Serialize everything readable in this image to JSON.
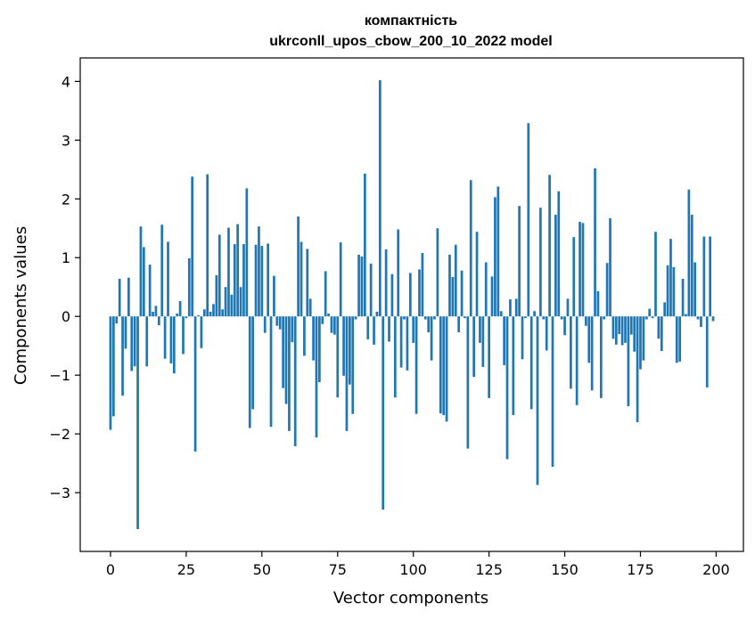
{
  "chart_data": {
    "type": "bar",
    "title": "компактність",
    "subtitle": "ukrconll_upos_cbow_200_10_2022 model",
    "xlabel": "Vector components",
    "ylabel": "Components values",
    "xlim": [
      -10,
      209
    ],
    "ylim": [
      -4.0,
      4.4
    ],
    "xticks": [
      0,
      25,
      50,
      75,
      100,
      125,
      150,
      175,
      200
    ],
    "yticks": [
      -3,
      -2,
      -1,
      0,
      1,
      2,
      3,
      4
    ],
    "grid": false,
    "bar_color": "#1f77b4",
    "x": [
      0,
      1,
      2,
      3,
      4,
      5,
      6,
      7,
      8,
      9,
      10,
      11,
      12,
      13,
      14,
      15,
      16,
      17,
      18,
      19,
      20,
      21,
      22,
      23,
      24,
      25,
      26,
      27,
      28,
      29,
      30,
      31,
      32,
      33,
      34,
      35,
      36,
      37,
      38,
      39,
      40,
      41,
      42,
      43,
      44,
      45,
      46,
      47,
      48,
      49,
      50,
      51,
      52,
      53,
      54,
      55,
      56,
      57,
      58,
      59,
      60,
      61,
      62,
      63,
      64,
      65,
      66,
      67,
      68,
      69,
      70,
      71,
      72,
      73,
      74,
      75,
      76,
      77,
      78,
      79,
      80,
      81,
      82,
      83,
      84,
      85,
      86,
      87,
      88,
      89,
      90,
      91,
      92,
      93,
      94,
      95,
      96,
      97,
      98,
      99,
      100,
      101,
      102,
      103,
      104,
      105,
      106,
      107,
      108,
      109,
      110,
      111,
      112,
      113,
      114,
      115,
      116,
      117,
      118,
      119,
      120,
      121,
      122,
      123,
      124,
      125,
      126,
      127,
      128,
      129,
      130,
      131,
      132,
      133,
      134,
      135,
      136,
      137,
      138,
      139,
      140,
      141,
      142,
      143,
      144,
      145,
      146,
      147,
      148,
      149,
      150,
      151,
      152,
      153,
      154,
      155,
      156,
      157,
      158,
      159,
      160,
      161,
      162,
      163,
      164,
      165,
      166,
      167,
      168,
      169,
      170,
      171,
      172,
      173,
      174,
      175,
      176,
      177,
      178,
      179,
      180,
      181,
      182,
      183,
      184,
      185,
      186,
      187,
      188,
      189,
      190,
      191,
      192,
      193,
      194,
      195,
      196,
      197,
      198,
      199
    ],
    "values": [
      -1.93,
      -1.7,
      -0.12,
      0.64,
      -1.35,
      -0.55,
      0.66,
      -0.93,
      -0.85,
      -3.62,
      1.53,
      1.18,
      -0.85,
      0.88,
      0.08,
      0.18,
      -0.15,
      1.56,
      -0.72,
      1.27,
      -0.8,
      -0.97,
      0.05,
      0.26,
      -0.64,
      -0.03,
      0.99,
      2.38,
      -2.3,
      0.02,
      -0.54,
      0.12,
      2.42,
      0.08,
      0.21,
      0.7,
      1.39,
      0.12,
      0.5,
      1.51,
      0.37,
      1.23,
      1.57,
      0.5,
      1.23,
      2.18,
      -1.9,
      -1.58,
      1.22,
      1.53,
      1.2,
      -0.28,
      1.24,
      -1.88,
      0.69,
      -0.16,
      -0.22,
      -1.22,
      -1.49,
      -1.95,
      -0.44,
      -2.21,
      1.7,
      1.27,
      -0.67,
      1.15,
      0.3,
      -0.75,
      -2.06,
      -1.12,
      -0.13,
      0.77,
      0.05,
      -0.28,
      -0.31,
      -1.38,
      1.26,
      -1.01,
      -1.95,
      -1.16,
      -1.66,
      -0.05,
      1.05,
      1.02,
      2.43,
      -0.39,
      0.9,
      -0.48,
      0.08,
      4.02,
      -3.29,
      1.14,
      -0.43,
      0.72,
      -1.38,
      1.48,
      -0.87,
      -0.05,
      -0.92,
      0.74,
      -0.45,
      -1.66,
      0.8,
      1.08,
      -0.05,
      -0.27,
      -0.75,
      -0.05,
      1.5,
      -1.65,
      -1.68,
      -1.79,
      1.05,
      0.67,
      1.22,
      -0.27,
      0.78,
      -0.03,
      -2.25,
      2.32,
      -1.03,
      1.44,
      -0.45,
      -0.86,
      0.92,
      -1.39,
      0.68,
      2.03,
      2.21,
      0.09,
      -0.83,
      -2.43,
      0.29,
      -1.68,
      0.3,
      1.88,
      -0.73,
      -0.03,
      3.29,
      -1.58,
      0.09,
      -2.87,
      1.85,
      -0.05,
      -0.58,
      2.41,
      -2.56,
      1.73,
      2.13,
      -0.05,
      -0.32,
      0.3,
      -1.23,
      1.35,
      -1.51,
      1.61,
      1.59,
      -0.16,
      -0.79,
      -1.26,
      2.52,
      0.43,
      -1.39,
      -0.05,
      0.91,
      1.67,
      -0.38,
      -0.48,
      -0.3,
      -0.49,
      -0.45,
      -1.53,
      -0.31,
      -0.6,
      -1.8,
      -0.9,
      -0.75,
      -0.05,
      0.13,
      -0.03,
      1.44,
      -0.38,
      -0.59,
      0.24,
      0.87,
      1.32,
      0.84,
      -0.79,
      -0.77,
      0.64,
      0.04,
      2.16,
      1.73,
      0.92,
      -0.05,
      -0.18,
      1.36,
      -1.21,
      1.36,
      -0.08
    ]
  }
}
